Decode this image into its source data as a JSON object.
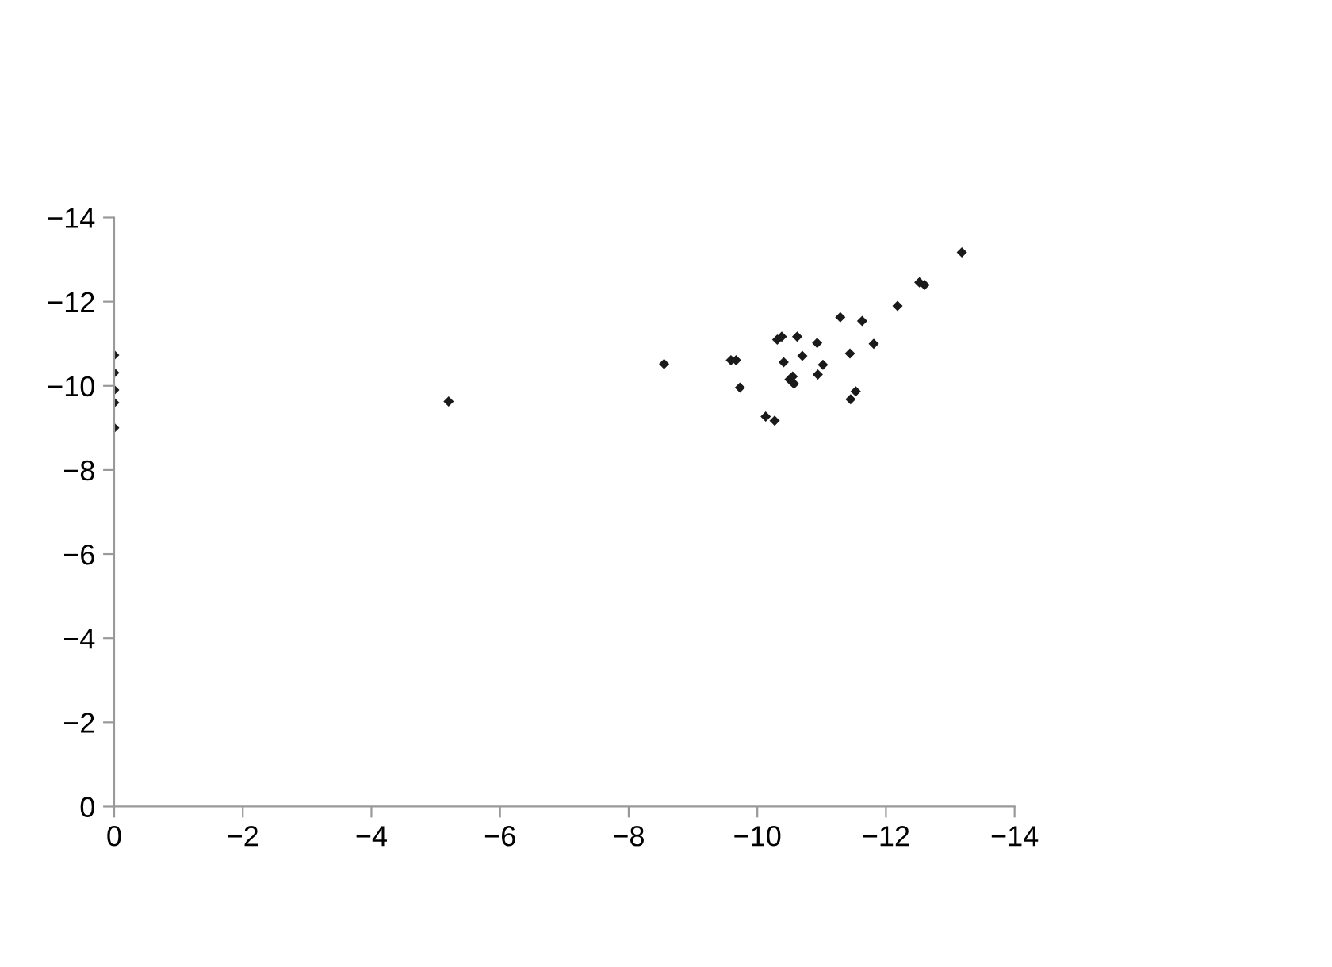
{
  "chart_data": {
    "type": "scatter",
    "marker": "diamond",
    "grid": false,
    "legend": false,
    "xlim": [
      0,
      -14
    ],
    "ylim": [
      0,
      -14
    ],
    "xticks": [
      0,
      -2,
      -4,
      -6,
      -8,
      -10,
      -12,
      -14
    ],
    "yticks": [
      0,
      -2,
      -4,
      -6,
      -8,
      -10,
      -12,
      -14
    ],
    "series": [
      {
        "color": "#1a1a1a",
        "x": [
          0,
          0,
          0,
          0,
          0,
          -5.2,
          -8.55,
          -9.59,
          -9.67,
          -9.73,
          -10.13,
          -10.27,
          -10.31,
          -10.38,
          -10.41,
          -10.62,
          -10.5,
          -10.55,
          -10.57,
          -10.7,
          -10.93,
          -11.02,
          -10.94,
          -11.29,
          -11.44,
          -11.63,
          -11.81,
          -11.45,
          -11.53,
          -12.18,
          -12.52,
          -12.6,
          -13.18
        ],
        "values": [
          -10.73,
          -10.31,
          -9.9,
          -9.6,
          -9.0,
          -9.63,
          -10.52,
          -10.61,
          -10.61,
          -9.96,
          -9.27,
          -9.17,
          -11.1,
          -11.17,
          -10.56,
          -11.17,
          -10.15,
          -10.22,
          -10.05,
          -10.71,
          -11.02,
          -10.5,
          -10.27,
          -11.63,
          -10.77,
          -11.54,
          -11.0,
          -9.68,
          -9.87,
          -11.9,
          -12.46,
          -12.4,
          -13.17
        ]
      }
    ]
  }
}
